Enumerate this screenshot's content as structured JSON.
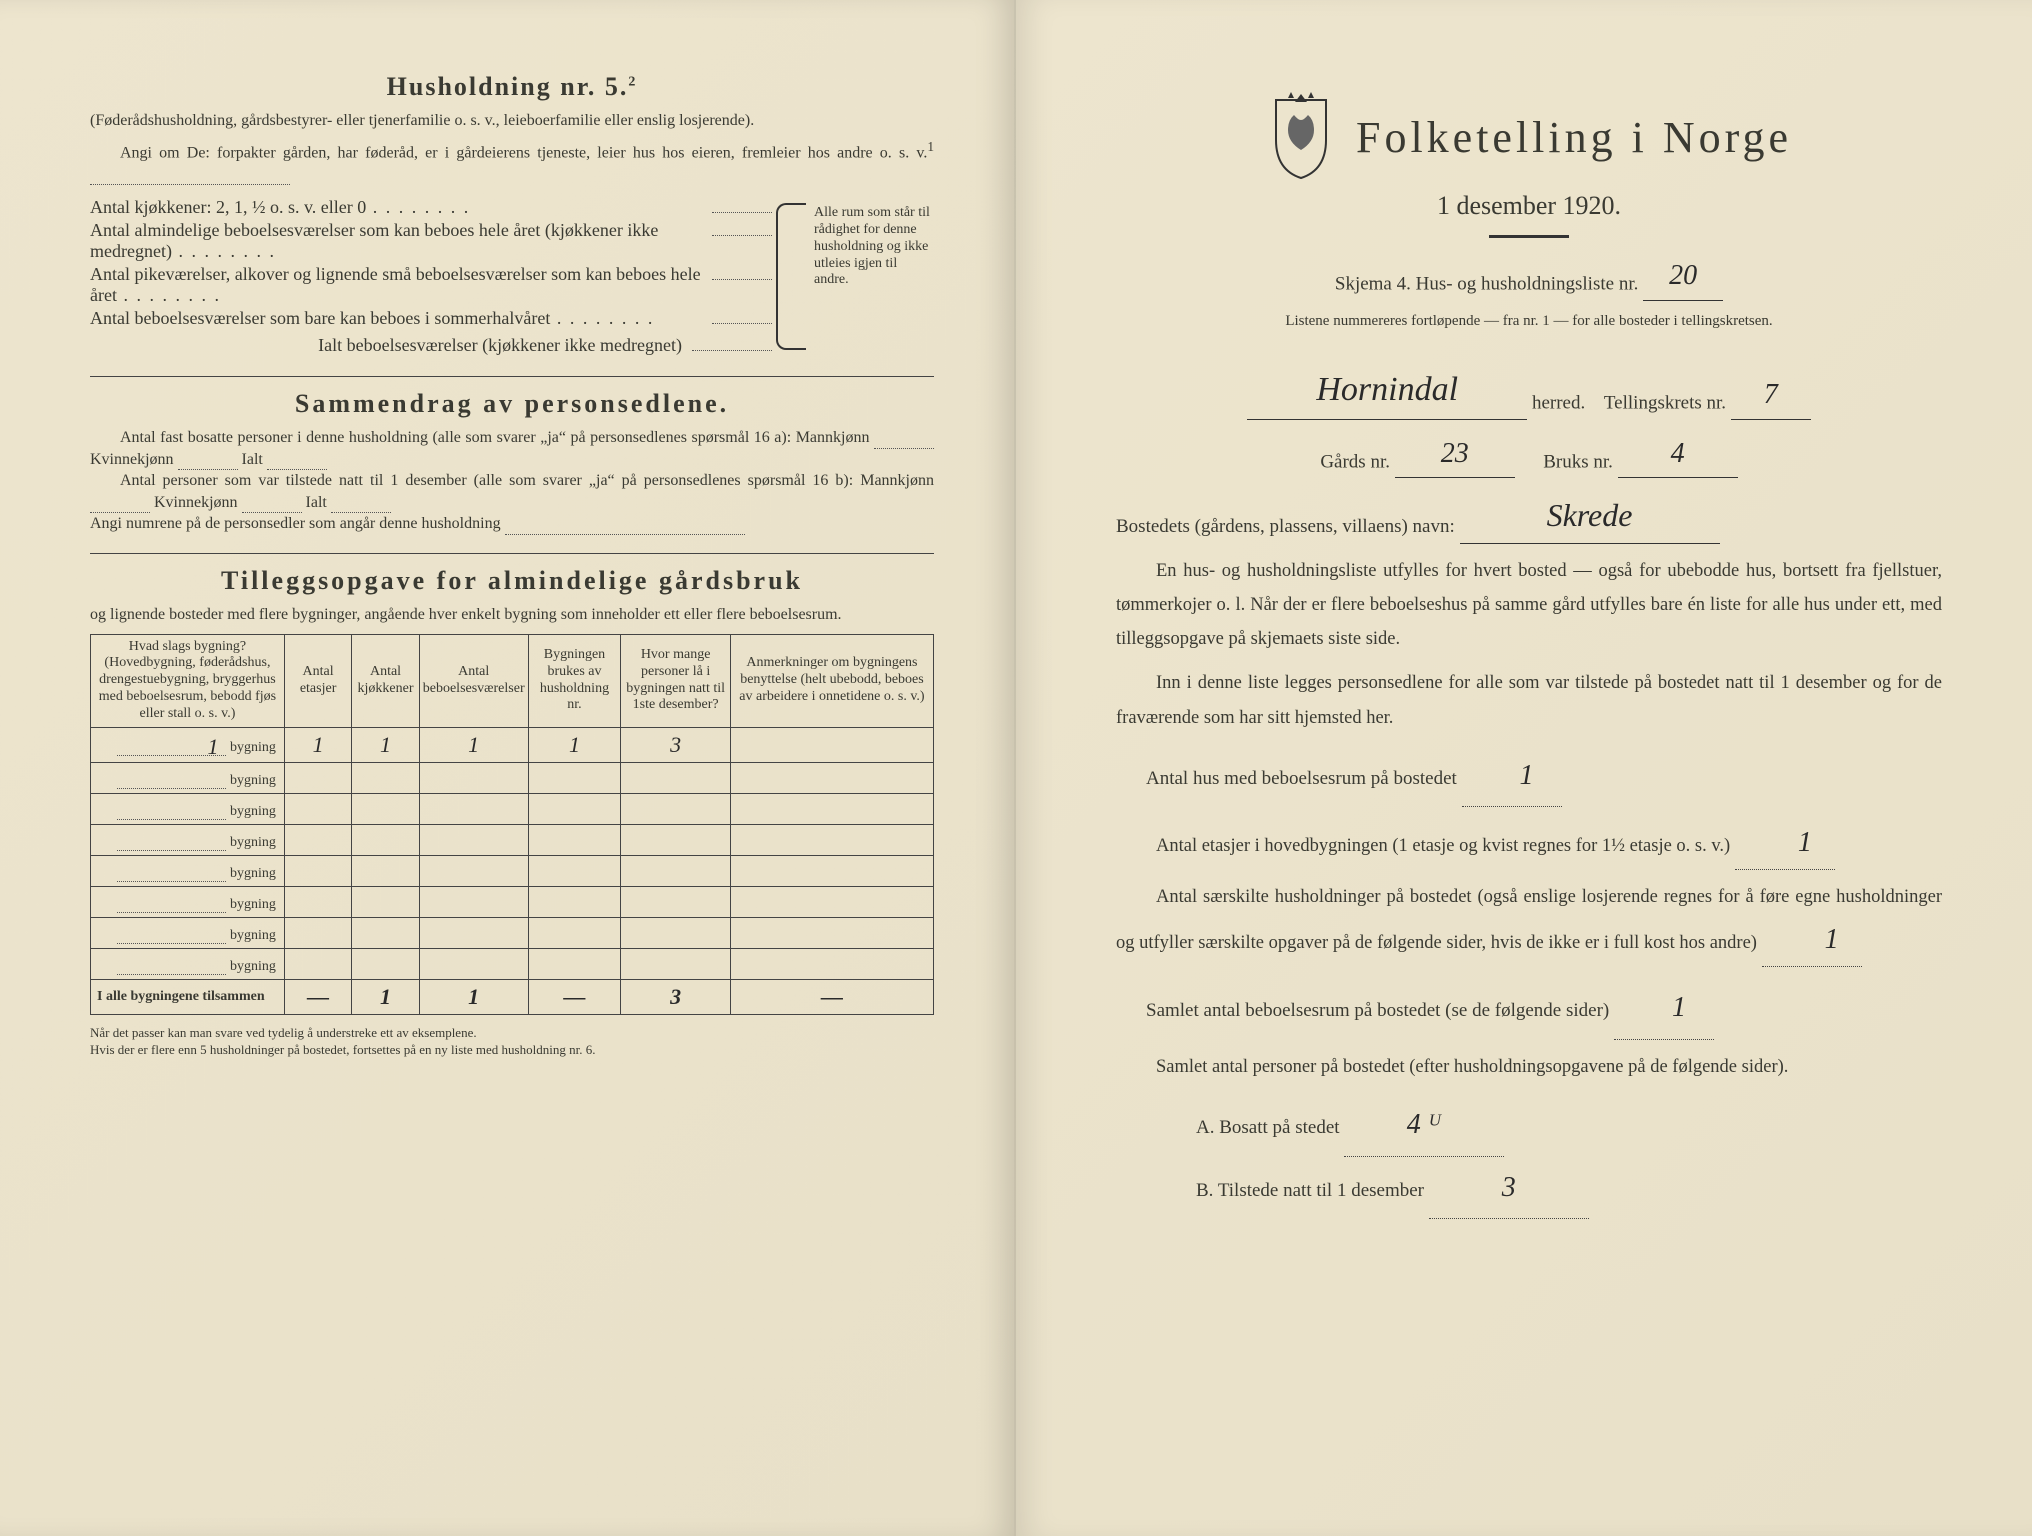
{
  "left": {
    "husholdning_heading": "Husholdning nr. 5.",
    "husholdning_sup": "2",
    "husholdning_sub": "(Føderådshusholdning, gårdsbestyrer- eller tjenerfamilie o. s. v., leieboerfamilie eller enslig losjerende).",
    "angi_om": "Angi om De:  forpakter gården, har føderåd, er i gårdeierens tjeneste, leier hus hos eieren, fremleier hos andre o. s. v.",
    "angi_sup": "1",
    "kjokken_label": "Antal kjøkkener: 2, 1, ½ o. s. v. eller 0",
    "alm_bebo": "Antal almindelige beboelsesværelser som kan beboes hele året (kjøkkener ikke medregnet)",
    "pikev": "Antal pikeværelser, alkover og lignende små beboelsesværelser som kan beboes hele året",
    "sommer": "Antal beboelsesværelser som bare kan beboes i sommerhalvåret",
    "ialt_bebo": "Ialt beboelsesværelser (kjøkkener ikke medregnet)",
    "bracket_note": "Alle rum som står til rådighet for denne husholdning og ikke utleies igjen til andre.",
    "sammendrag_heading": "Sammendrag av personsedlene.",
    "sammendrag_1a": "Antal fast bosatte personer i denne husholdning (alle som svarer „ja“ på personsedlenes spørsmål 16 a): Mannkjønn",
    "kvinnekjonn": "Kvinnekjønn",
    "ialt": "Ialt",
    "sammendrag_1b": "Antal personer som var tilstede natt til 1 desember (alle som svarer „ja“ på personsedlenes spørsmål 16 b): Mannkjønn",
    "angi_numrene": "Angi numrene på de personsedler som angår denne husholdning",
    "tillegg_heading": "Tilleggsopgave for almindelige gårdsbruk",
    "tillegg_sub": "og lignende bosteder med flere bygninger, angående hver enkelt bygning som inneholder ett eller flere beboelsesrum.",
    "table": {
      "headers": [
        "Hvad slags bygning?\n(Hovedbygning, føderådshus, drengestuebygning, bryggerhus med beboelsesrum, bebodd fjøs eller stall o. s. v.)",
        "Antal etasjer",
        "Antal kjøkkener",
        "Antal beboelsesværelser",
        "Bygningen brukes av husholdning nr.",
        "Hvor mange personer lå i bygningen natt til 1ste desember?",
        "Anmerkninger om bygningens benyttelse (helt ubebodd, beboes av arbeidere i onnetidene o. s. v.)"
      ],
      "bygning_suffix": "bygning",
      "rows": [
        {
          "c0": "1",
          "c1": "1",
          "c2": "1",
          "c3": "1",
          "c4": "1",
          "c5": "3",
          "c6": ""
        },
        {
          "c0": "",
          "c1": "",
          "c2": "",
          "c3": "",
          "c4": "",
          "c5": "",
          "c6": ""
        },
        {
          "c0": "",
          "c1": "",
          "c2": "",
          "c3": "",
          "c4": "",
          "c5": "",
          "c6": ""
        },
        {
          "c0": "",
          "c1": "",
          "c2": "",
          "c3": "",
          "c4": "",
          "c5": "",
          "c6": ""
        },
        {
          "c0": "",
          "c1": "",
          "c2": "",
          "c3": "",
          "c4": "",
          "c5": "",
          "c6": ""
        },
        {
          "c0": "",
          "c1": "",
          "c2": "",
          "c3": "",
          "c4": "",
          "c5": "",
          "c6": ""
        },
        {
          "c0": "",
          "c1": "",
          "c2": "",
          "c3": "",
          "c4": "",
          "c5": "",
          "c6": ""
        },
        {
          "c0": "",
          "c1": "",
          "c2": "",
          "c3": "",
          "c4": "",
          "c5": "",
          "c6": ""
        }
      ],
      "total_label": "I alle bygningene tilsammen",
      "total": {
        "c1": "—",
        "c2": "1",
        "c3": "1",
        "c4": "—",
        "c5": "3",
        "c6": "—"
      }
    },
    "footnote": "Når det passer kan man svare ved tydelig å understreke ett av eksemplene.\nHvis der er flere enn 5 husholdninger på bostedet, fortsettes på en ny liste med husholdning nr. 6."
  },
  "right": {
    "title": "Folketelling i Norge",
    "subtitle": "1 desember 1920.",
    "skjema_line": "Skjema 4.  Hus- og husholdningsliste nr.",
    "skjema_nr": "20",
    "listene_sub": "Listene nummereres fortløpende — fra nr. 1 — for alle bosteder i tellingskretsen.",
    "herred_value": "Hornindal",
    "herred_label": "herred.",
    "tellingskrets_label": "Tellingskrets nr.",
    "tellingskrets_nr": "7",
    "gards_label": "Gårds nr.",
    "gards_nr": "23",
    "bruks_label": "Bruks nr.",
    "bruks_nr": "4",
    "bosted_label": "Bostedets (gårdens, plassens, villaens) navn:",
    "bosted_value": "Skrede",
    "para1": "En hus- og husholdningsliste utfylles for hvert bosted — også for ubebodde hus, bortsett fra fjellstuer, tømmerkojer o. l. Når der er flere beboelseshus på samme gård utfylles bare én liste for alle hus under ett, med tilleggsopgave på skjemaets siste side.",
    "para2": "Inn i denne liste legges personsedlene for alle som var tilstede på bostedet natt til 1 desember og for de fraværende som har sitt hjemsted her.",
    "q1_label": "Antal hus med beboelsesrum på bostedet",
    "q1_value": "1",
    "q2_label_a": "Antal etasjer i hovedbygningen (1 etasje og kvist regnes for 1½ etasje o. s. v.)",
    "q2_value": "1",
    "q3_label": "Antal særskilte husholdninger på bostedet (også enslige losjerende regnes for å føre egne husholdninger og utfyller særskilte opgaver på de følgende sider, hvis de ikke er i full kost hos andre)",
    "q3_value": "1",
    "q4_label": "Samlet antal beboelsesrum på bostedet (se de følgende sider)",
    "q4_value": "1",
    "q5_label": "Samlet antal personer på bostedet (efter husholdningsopgavene på de følgende sider).",
    "qA_label": "A.  Bosatt på stedet",
    "qA_value": "4 ᵁ",
    "qB_label": "B.  Tilstede natt til 1 desember",
    "qB_value": "3"
  },
  "colors": {
    "paper": "#ede5ce",
    "ink": "#3a3a32",
    "handwriting": "#2a2a2a"
  }
}
